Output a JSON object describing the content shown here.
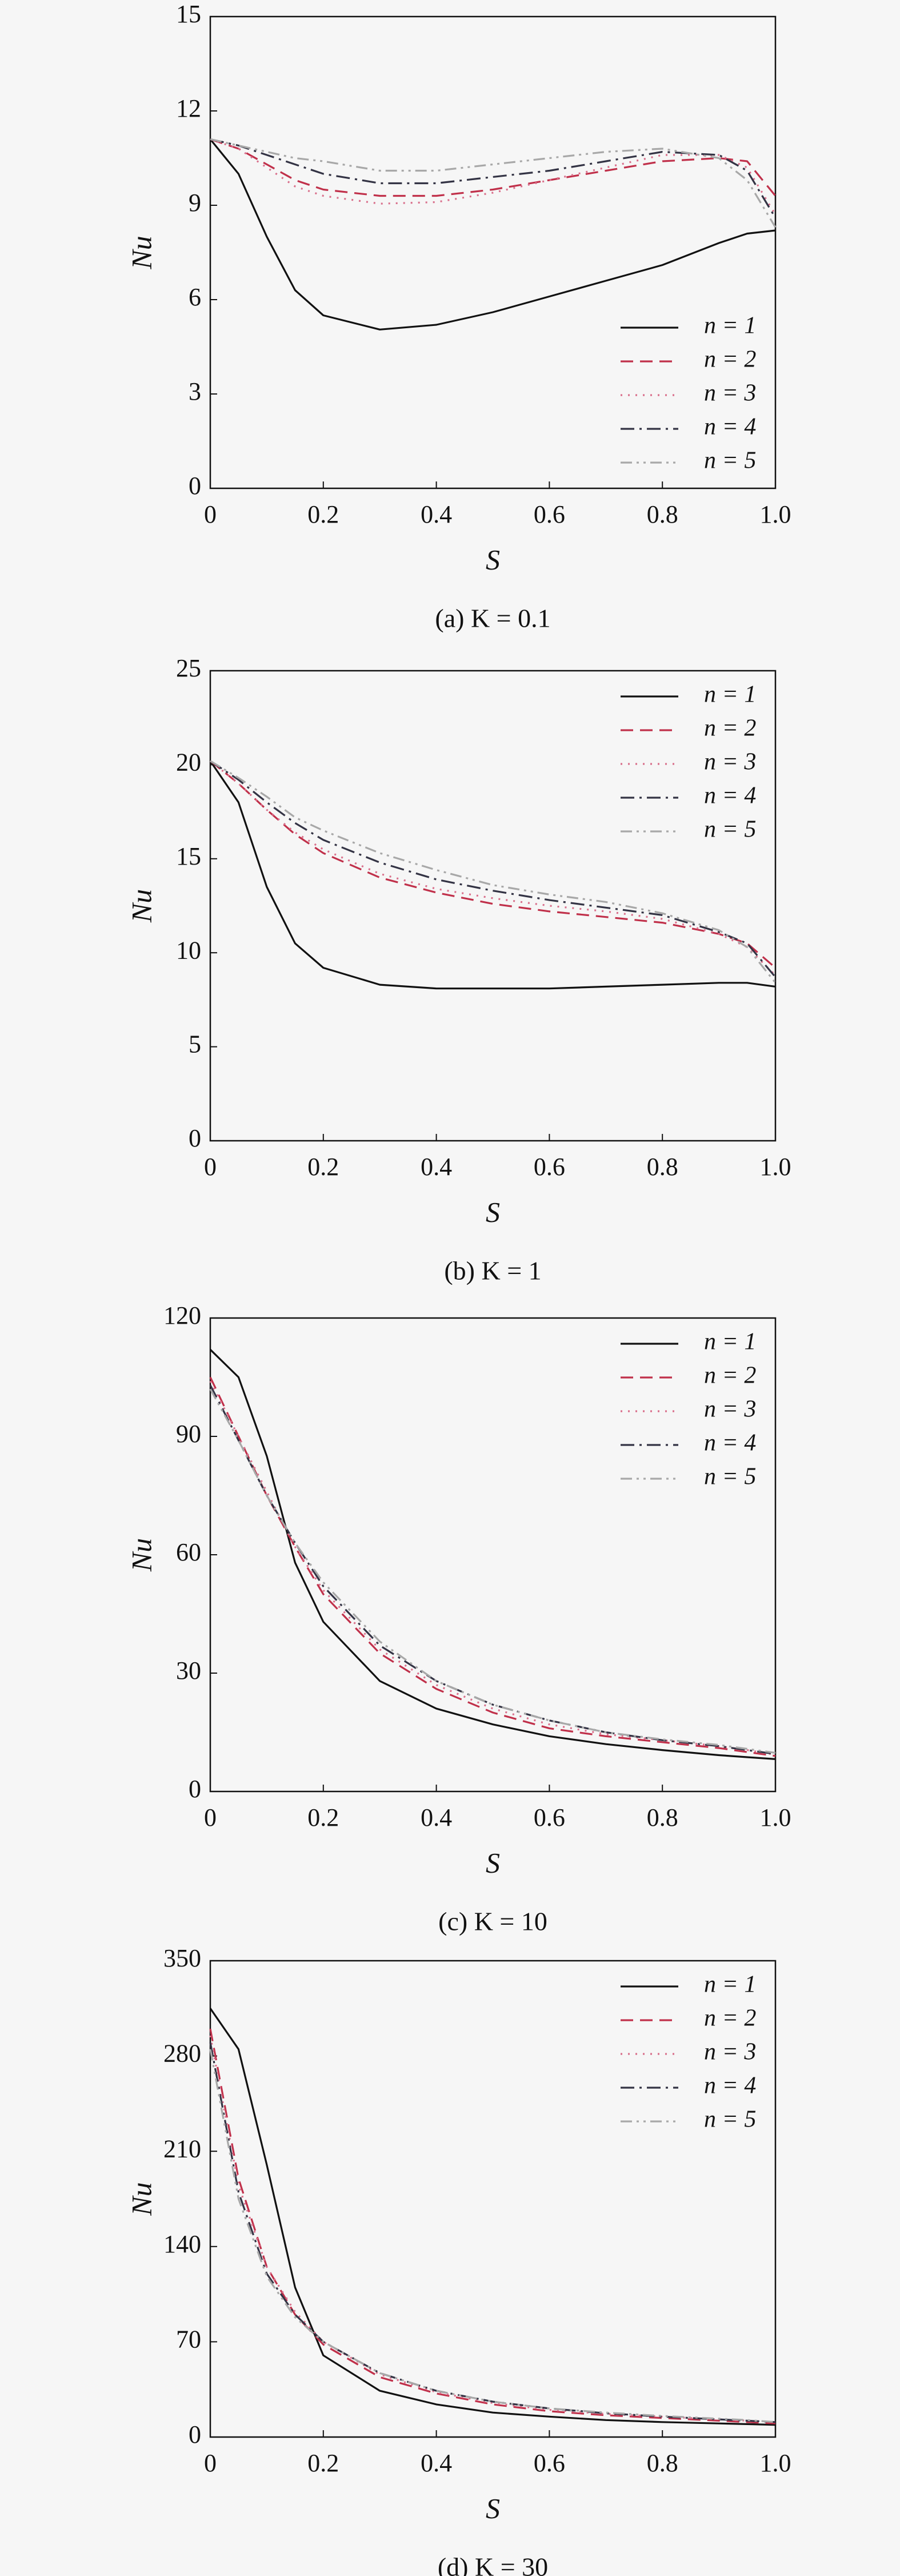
{
  "chart_data": [
    {
      "type": "line",
      "caption": "(a) K = 0.1",
      "xlabel": "S",
      "ylabel": "Nu",
      "legend": "lower right",
      "x": [
        0,
        0.05,
        0.1,
        0.15,
        0.2,
        0.3,
        0.4,
        0.5,
        0.6,
        0.7,
        0.8,
        0.9,
        0.95,
        1.0
      ],
      "xlim": [
        0,
        1
      ],
      "xticks": [
        0,
        0.2,
        0.4,
        0.6,
        0.8,
        {
          "value": 1,
          "label": "1.0"
        }
      ],
      "ylim": [
        0,
        15
      ],
      "yticks": [
        0,
        3,
        6,
        9,
        12,
        15
      ],
      "series": [
        {
          "name": "n = 1",
          "color": "#111111",
          "linestyle": "solid",
          "values": [
            11.1,
            10.0,
            8.0,
            6.3,
            5.5,
            5.05,
            5.2,
            5.6,
            6.1,
            6.6,
            7.1,
            7.8,
            8.1,
            8.2
          ]
        },
        {
          "name": "n = 2",
          "color": "#c0304a",
          "linestyle": "dashed",
          "values": [
            11.1,
            10.8,
            10.3,
            9.8,
            9.5,
            9.3,
            9.3,
            9.5,
            9.8,
            10.1,
            10.4,
            10.5,
            10.4,
            9.3
          ]
        },
        {
          "name": "n = 3",
          "color": "#d9708c",
          "linestyle": "dotted",
          "values": [
            11.1,
            10.8,
            10.2,
            9.6,
            9.3,
            9.05,
            9.1,
            9.4,
            9.8,
            10.2,
            10.6,
            10.6,
            10.2,
            8.7
          ]
        },
        {
          "name": "n = 4",
          "color": "#333344",
          "linestyle": "dashdot",
          "values": [
            11.1,
            10.9,
            10.6,
            10.3,
            10.0,
            9.7,
            9.7,
            9.9,
            10.1,
            10.4,
            10.7,
            10.6,
            10.1,
            8.6
          ]
        },
        {
          "name": "n = 5",
          "color": "#a8a8a8",
          "linestyle": "dashdotdot",
          "values": [
            11.1,
            10.9,
            10.7,
            10.5,
            10.4,
            10.1,
            10.1,
            10.3,
            10.5,
            10.7,
            10.8,
            10.5,
            9.8,
            8.3
          ]
        }
      ]
    },
    {
      "type": "line",
      "caption": "(b) K = 1",
      "xlabel": "S",
      "ylabel": "Nu",
      "legend": "upper right",
      "x": [
        0,
        0.05,
        0.1,
        0.15,
        0.2,
        0.3,
        0.4,
        0.5,
        0.6,
        0.7,
        0.8,
        0.9,
        0.95,
        1.0
      ],
      "xlim": [
        0,
        1
      ],
      "xticks": [
        0,
        0.2,
        0.4,
        0.6,
        0.8,
        {
          "value": 1,
          "label": "1.0"
        }
      ],
      "ylim": [
        0,
        25
      ],
      "yticks": [
        0,
        5,
        10,
        15,
        20,
        25
      ],
      "series": [
        {
          "name": "n = 1",
          "color": "#111111",
          "linestyle": "solid",
          "values": [
            20.2,
            18.0,
            13.5,
            10.5,
            9.2,
            8.3,
            8.1,
            8.1,
            8.1,
            8.2,
            8.3,
            8.4,
            8.4,
            8.2
          ]
        },
        {
          "name": "n = 2",
          "color": "#c0304a",
          "linestyle": "dashed",
          "values": [
            20.2,
            19.0,
            17.6,
            16.3,
            15.3,
            14.0,
            13.2,
            12.6,
            12.2,
            11.9,
            11.6,
            11.0,
            10.5,
            9.2
          ]
        },
        {
          "name": "n = 3",
          "color": "#d9708c",
          "linestyle": "dotted",
          "values": [
            20.2,
            19.0,
            17.6,
            16.4,
            15.5,
            14.2,
            13.4,
            12.9,
            12.5,
            12.2,
            11.8,
            11.0,
            10.3,
            8.8
          ]
        },
        {
          "name": "n = 4",
          "color": "#333344",
          "linestyle": "dashdot",
          "values": [
            20.2,
            19.2,
            18.0,
            16.9,
            16.0,
            14.8,
            13.9,
            13.3,
            12.8,
            12.4,
            12.0,
            11.1,
            10.5,
            8.7
          ]
        },
        {
          "name": "n = 5",
          "color": "#a8a8a8",
          "linestyle": "dashdotdot",
          "values": [
            20.2,
            19.3,
            18.3,
            17.2,
            16.5,
            15.3,
            14.4,
            13.6,
            13.1,
            12.7,
            12.1,
            11.2,
            10.3,
            8.4
          ]
        }
      ]
    },
    {
      "type": "line",
      "caption": "(c) K = 10",
      "xlabel": "S",
      "ylabel": "Nu",
      "legend": "upper right",
      "x": [
        0,
        0.05,
        0.1,
        0.15,
        0.2,
        0.3,
        0.4,
        0.5,
        0.6,
        0.7,
        0.8,
        0.9,
        0.95,
        1.0
      ],
      "xlim": [
        0,
        1
      ],
      "xticks": [
        0,
        0.2,
        0.4,
        0.6,
        0.8,
        {
          "value": 1,
          "label": "1.0"
        }
      ],
      "ylim": [
        0,
        120
      ],
      "yticks": [
        0,
        30,
        60,
        90,
        120
      ],
      "series": [
        {
          "name": "n = 1",
          "color": "#111111",
          "linestyle": "solid",
          "values": [
            112,
            105,
            85,
            58,
            43,
            28,
            21,
            17,
            14,
            12,
            10.5,
            9.2,
            8.7,
            8.2
          ]
        },
        {
          "name": "n = 2",
          "color": "#c0304a",
          "linestyle": "dashed",
          "values": [
            105,
            90,
            75,
            62,
            50,
            35,
            26,
            20,
            16,
            14,
            12.5,
            11,
            10,
            9
          ]
        },
        {
          "name": "n = 3",
          "color": "#d9708c",
          "linestyle": "dotted",
          "values": [
            104,
            90,
            76,
            62,
            51,
            36,
            27,
            21,
            17,
            14.5,
            13,
            11.5,
            10.5,
            9.3
          ]
        },
        {
          "name": "n = 4",
          "color": "#333344",
          "linestyle": "dashdot",
          "values": [
            103,
            89,
            75,
            63,
            52,
            37,
            28,
            22,
            18,
            15,
            13,
            11.5,
            10.5,
            9.5
          ]
        },
        {
          "name": "n = 5",
          "color": "#a8a8a8",
          "linestyle": "dashdotdot",
          "values": [
            102,
            89,
            75,
            63,
            53,
            38,
            28,
            22,
            18,
            15,
            13.2,
            11.8,
            10.8,
            9.8
          ]
        }
      ]
    },
    {
      "type": "line",
      "caption": "(d) K = 30",
      "xlabel": "S",
      "ylabel": "Nu",
      "legend": "upper right",
      "x": [
        0,
        0.05,
        0.1,
        0.15,
        0.2,
        0.3,
        0.4,
        0.5,
        0.6,
        0.7,
        0.8,
        0.9,
        0.95,
        1.0
      ],
      "xlim": [
        0,
        1
      ],
      "xticks": [
        0,
        0.2,
        0.4,
        0.6,
        0.8,
        {
          "value": 1,
          "label": "1.0"
        }
      ],
      "ylim": [
        0,
        350
      ],
      "yticks": [
        0,
        70,
        140,
        210,
        280,
        350
      ],
      "series": [
        {
          "name": "n = 1",
          "color": "#111111",
          "linestyle": "solid",
          "values": [
            315,
            285,
            200,
            110,
            60,
            34,
            24,
            18,
            15,
            12.5,
            11,
            10,
            9.5,
            9
          ]
        },
        {
          "name": "n = 2",
          "color": "#c0304a",
          "linestyle": "dashed",
          "values": [
            300,
            190,
            125,
            90,
            68,
            44,
            32,
            24,
            19,
            16,
            14,
            12,
            11,
            10
          ]
        },
        {
          "name": "n = 3",
          "color": "#d9708c",
          "linestyle": "dotted",
          "values": [
            295,
            185,
            125,
            92,
            70,
            46,
            33,
            25,
            20,
            17,
            15,
            13,
            12,
            11
          ]
        },
        {
          "name": "n = 4",
          "color": "#333344",
          "linestyle": "dashdot",
          "values": [
            290,
            180,
            120,
            90,
            70,
            47,
            34,
            26,
            21,
            17.5,
            15,
            13,
            12,
            11
          ]
        },
        {
          "name": "n = 5",
          "color": "#a8a8a8",
          "linestyle": "dashdotdot",
          "values": [
            285,
            175,
            118,
            88,
            70,
            47,
            34,
            26,
            21,
            18,
            15.5,
            13.5,
            12.5,
            11
          ]
        }
      ]
    }
  ]
}
